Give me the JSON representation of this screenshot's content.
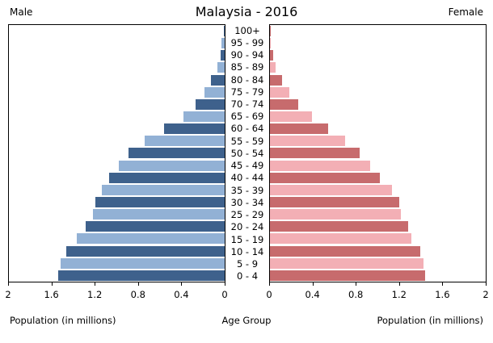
{
  "header": {
    "male_label": "Male",
    "female_label": "Female"
  },
  "chart_data": {
    "type": "bar",
    "subtype": "population-pyramid",
    "title": "Malaysia - 2016",
    "xlabel_left": "Population (in millions)",
    "xlabel_center": "Age Group",
    "xlabel_right": "Population (in millions)",
    "xmax": 2,
    "grid": false,
    "x_ticks_left": [
      "2",
      "1.6",
      "1.2",
      "0.8",
      "0.4",
      "0"
    ],
    "x_ticks_right": [
      "0",
      "0.4",
      "0.8",
      "1.2",
      "1.6",
      "2"
    ],
    "age_groups": [
      "100+",
      "95 - 99",
      "90 - 94",
      "85 - 89",
      "80 - 84",
      "75 - 79",
      "70 - 74",
      "65 - 69",
      "60 - 64",
      "55 - 59",
      "50 - 54",
      "45 - 49",
      "40 - 44",
      "35 - 39",
      "30 - 34",
      "25 - 29",
      "20 - 24",
      "15 - 19",
      "10 - 14",
      "5 - 9",
      "0 - 4"
    ],
    "series": [
      {
        "name": "Male",
        "side": "left",
        "values": [
          0.01,
          0.03,
          0.04,
          0.07,
          0.13,
          0.19,
          0.27,
          0.38,
          0.56,
          0.74,
          0.89,
          0.98,
          1.07,
          1.14,
          1.2,
          1.22,
          1.29,
          1.37,
          1.47,
          1.52,
          1.54
        ]
      },
      {
        "name": "Female",
        "side": "right",
        "values": [
          0.005,
          0.01,
          0.03,
          0.05,
          0.11,
          0.18,
          0.26,
          0.39,
          0.54,
          0.7,
          0.83,
          0.93,
          1.02,
          1.13,
          1.2,
          1.21,
          1.28,
          1.31,
          1.39,
          1.42,
          1.44
        ]
      }
    ],
    "colors": {
      "male_dark": "#3e618c",
      "male_light": "#92b1d5",
      "female_dark": "#c76b6d",
      "female_light": "#f3afb5"
    }
  }
}
